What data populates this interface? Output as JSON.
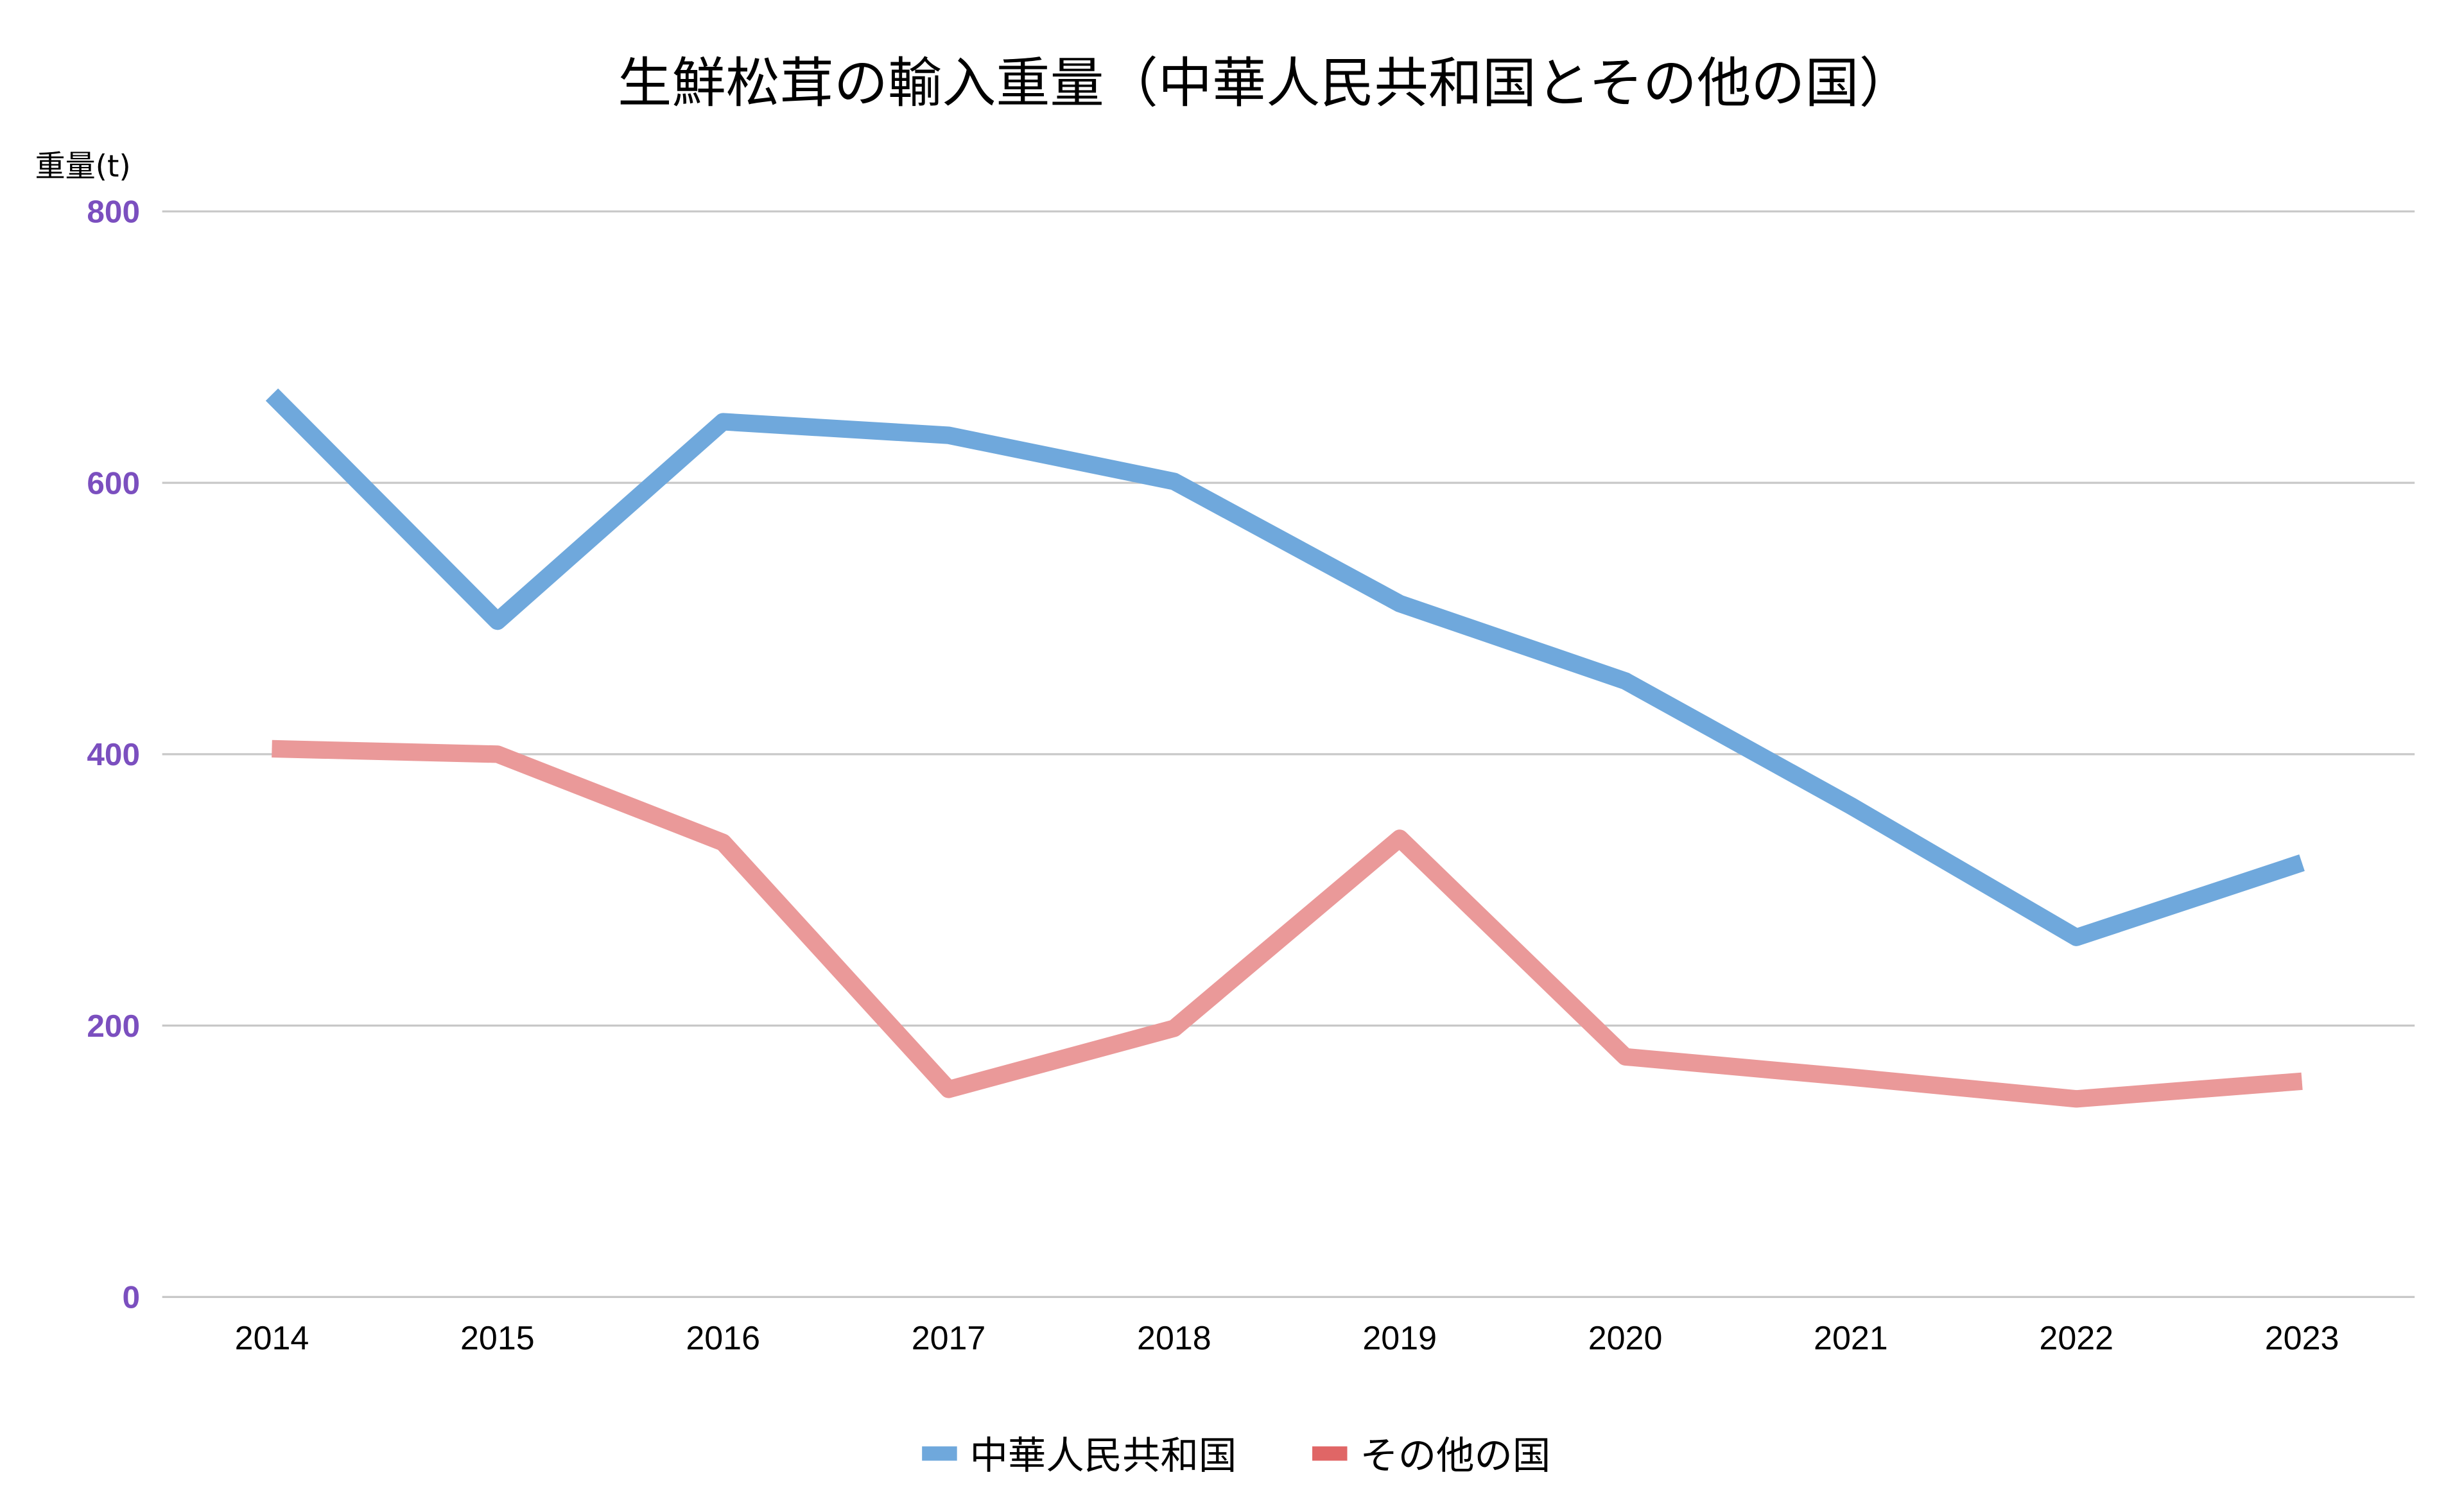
{
  "chart_data": {
    "type": "line",
    "title": "生鮮松茸の輸入重量（中華人民共和国とその他の国）",
    "xlabel": "",
    "ylabel": "重量(t)",
    "ylim": [
      0,
      800
    ],
    "yticks": [
      0,
      200,
      400,
      600,
      800
    ],
    "grid": true,
    "legend_position": "bottom",
    "categories": [
      "2014",
      "2015",
      "2016",
      "2017",
      "2018",
      "2019",
      "2020",
      "2021",
      "2022",
      "2023"
    ],
    "series": [
      {
        "name": "中華人民共和国",
        "color": "#6fa8dc",
        "legend_color": "#6fa8dc",
        "values": [
          665,
          498,
          645,
          635,
          601,
          511,
          454,
          362,
          265,
          320
        ]
      },
      {
        "name": "その他の国",
        "color": "#ea9999",
        "legend_color": "#e06666",
        "values": [
          404,
          400,
          335,
          153,
          198,
          338,
          177,
          162,
          146,
          159
        ]
      }
    ]
  }
}
